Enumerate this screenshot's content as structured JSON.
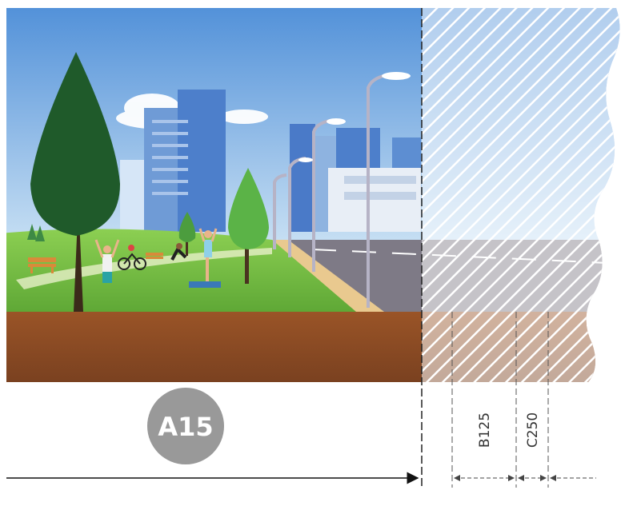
{
  "zones": {
    "a15_label": "A15",
    "b125_label": "B125",
    "c250_label": "C250"
  },
  "colors": {
    "sky_top": "#4f8fd8",
    "sky_bottom": "#bcd9f2",
    "grass": "#7cc04a",
    "soil": "#8a4b22",
    "badge": "#999999",
    "road": "#7e7a86",
    "hatch": "#ffffff"
  },
  "icons": [
    "tree-icon",
    "street-lamp-icon",
    "cyclist-icon",
    "bench-icon",
    "building-icon",
    "arrow-right-icon"
  ]
}
